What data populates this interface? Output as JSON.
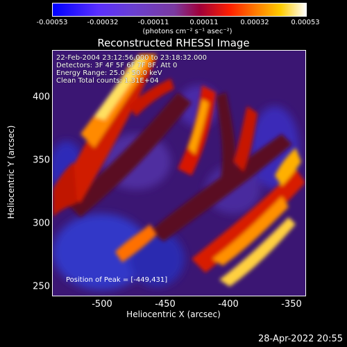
{
  "colorbar": {
    "ticks": [
      "-0.00053",
      "-0.00032",
      "-0.00011",
      "0.00011",
      "0.00032",
      "0.00053"
    ],
    "unit_label": "(photons cm⁻² s⁻¹ asec⁻²)"
  },
  "title": "Reconstructed RHESSI Image",
  "info": {
    "line1": "22-Feb-2004 23:12:56.000 to 23:18:32.000",
    "line2": "Detectors: 3F 4F 5F 6F 7F 8F, Att 0",
    "line3": "Energy Range: 25.0 - 50.0 keV",
    "line4": "Clean    Total counts: 1.31E+04"
  },
  "peak_label": "Position of Peak = [-449,431]",
  "axes": {
    "x_ticks": [
      "-500",
      "-450",
      "-400",
      "-350"
    ],
    "y_ticks": [
      "400",
      "350",
      "300",
      "250"
    ],
    "x_label": "Heliocentric X (arcsec)",
    "y_label": "Heliocentric Y (arcsec)"
  },
  "timestamp": "28-Apr-2022 20:55",
  "colors": {
    "background": "#000000",
    "low": "#0000ff",
    "mid": "#6a3fcf",
    "high": "#ffffff"
  }
}
